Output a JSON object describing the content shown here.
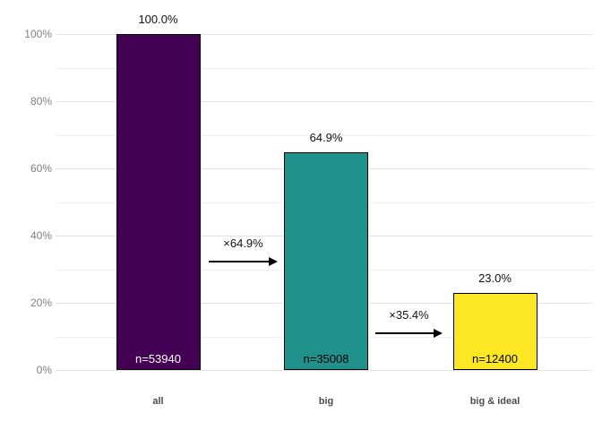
{
  "chart_data": {
    "type": "bar",
    "title": "",
    "xlabel": "",
    "ylabel": "",
    "categories": [
      "all",
      "big",
      "big & ideal"
    ],
    "values": [
      100.0,
      64.9,
      23.0
    ],
    "counts": [
      53940,
      35008,
      12400
    ],
    "bar_value_labels": [
      "100.0%",
      "64.9%",
      "23.0%"
    ],
    "bar_count_labels": [
      "n=53940",
      "n=35008",
      "n=12400"
    ],
    "bar_colors": [
      "#440154",
      "#21918c",
      "#fde725"
    ],
    "bar_count_label_colors": [
      "#ffffff",
      "#000000",
      "#000000"
    ],
    "arrows": [
      {
        "label": "×64.9%",
        "from": "all",
        "to": "big"
      },
      {
        "label": "×35.4%",
        "from": "big",
        "to": "big & ideal"
      }
    ],
    "y_axis": {
      "tick_labels": [
        "0%",
        "20%",
        "40%",
        "60%",
        "80%",
        "100%"
      ],
      "tick_values": [
        0,
        20,
        40,
        60,
        80,
        100
      ],
      "minor_tick_values": [
        10,
        30,
        50,
        70,
        90
      ],
      "ylim": [
        0,
        100
      ],
      "grid": true
    },
    "legend": "none"
  },
  "colors": {
    "background": "#ffffff",
    "major_gridline": "#e2e2e2",
    "minor_gridline": "#f0f0f0",
    "tick_label": "#7f7f7f",
    "category_label": "#4d4d4d",
    "value_label": "#111111",
    "bar_border": "#000000",
    "arrow": "#000000"
  }
}
